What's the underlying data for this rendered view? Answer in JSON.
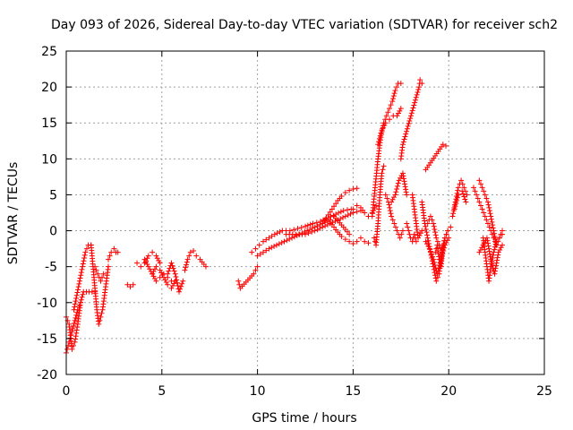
{
  "chart_data": {
    "type": "scatter",
    "title": "Day 093 of 2026, Sidereal Day-to-day VTEC variation (SDTVAR) for receiver sch2",
    "xlabel": "GPS time / hours",
    "ylabel": "SDTVAR / TECUs",
    "xlim": [
      0,
      25
    ],
    "ylim": [
      -20,
      25
    ],
    "xticks": [
      "0",
      "5",
      "10",
      "15",
      "20",
      "25"
    ],
    "yticks": [
      "-20",
      "-15",
      "-10",
      "-5",
      "0",
      "5",
      "10",
      "15",
      "20",
      "25"
    ],
    "grid": true,
    "marker": "+",
    "color": "#ff0000",
    "series": [
      {
        "name": "sch2",
        "segments": [
          {
            "x": [
              0.0,
              0.15,
              0.3,
              0.45,
              0.6,
              0.75,
              0.9,
              1.05,
              1.2,
              1.35,
              1.5
            ],
            "y": [
              -12,
              -13,
              -16.5,
              -15.5,
              -13,
              -10,
              -8.5,
              -8.5,
              -8.5,
              -8.5,
              -8.5
            ]
          },
          {
            "x": [
              0.4,
              0.55,
              0.7,
              0.85,
              1.0,
              1.15,
              1.3
            ],
            "y": [
              -11,
              -9,
              -7,
              -5,
              -3,
              -2,
              -2
            ]
          },
          {
            "x": [
              0.0,
              0.1,
              0.2,
              0.3,
              0.45,
              0.6,
              0.75
            ],
            "y": [
              -17,
              -16,
              -15,
              -14,
              -12.5,
              -11,
              -10
            ]
          },
          {
            "x": [
              1.3,
              1.4,
              1.5,
              1.6,
              1.7,
              1.8,
              1.9,
              2.0,
              2.1,
              2.2
            ],
            "y": [
              -2,
              -5,
              -8,
              -11,
              -13,
              -12,
              -11,
              -9,
              -7,
              -5
            ]
          },
          {
            "x": [
              1.5,
              1.65,
              1.8,
              1.95
            ],
            "y": [
              -5,
              -6,
              -7,
              -6
            ]
          },
          {
            "x": [
              2.2,
              2.35,
              2.5,
              2.6,
              2.7
            ],
            "y": [
              -4,
              -3,
              -2.5,
              -3,
              -3
            ]
          },
          {
            "x": [
              3.2,
              3.35,
              3.5
            ],
            "y": [
              -7.5,
              -7.8,
              -7.5
            ]
          },
          {
            "x": [
              3.7,
              3.9,
              4.1,
              4.3,
              4.5,
              4.7,
              4.9
            ],
            "y": [
              -4.5,
              -5,
              -4.5,
              -3.5,
              -3,
              -3.5,
              -4.5
            ]
          },
          {
            "x": [
              4.1,
              4.3,
              4.5,
              4.7,
              4.9,
              5.1,
              5.3,
              5.5
            ],
            "y": [
              -4,
              -5,
              -6,
              -7,
              -6.5,
              -6,
              -6.5,
              -7
            ]
          },
          {
            "x": [
              4.5,
              4.7,
              4.9,
              5.1,
              5.3,
              5.5,
              5.7
            ],
            "y": [
              -6,
              -5,
              -5.5,
              -6.5,
              -7.5,
              -8,
              -7
            ]
          },
          {
            "x": [
              5.3,
              5.5,
              5.7,
              5.9,
              6.1
            ],
            "y": [
              -6,
              -4.5,
              -6,
              -8.5,
              -7
            ]
          },
          {
            "x": [
              6.2,
              6.35,
              6.5,
              6.65
            ],
            "y": [
              -5.5,
              -4,
              -3,
              -2.8
            ]
          },
          {
            "x": [
              6.8,
              7.0,
              7.3
            ],
            "y": [
              -3.5,
              -4,
              -5
            ]
          },
          {
            "x": [
              9.0,
              9.1,
              9.8,
              9.9,
              10.0
            ],
            "y": [
              -7,
              -8,
              -6,
              -5.5,
              -5
            ]
          },
          {
            "x": [
              9.7,
              9.9,
              10.1,
              10.3,
              10.6,
              10.9,
              11.3,
              11.7,
              12.1,
              12.5,
              12.9,
              13.3,
              13.7,
              14.1,
              14.5,
              14.9
            ],
            "y": [
              -3,
              -2.5,
              -2,
              -1.5,
              -1,
              -0.5,
              0,
              0,
              0.3,
              0.6,
              1,
              1.3,
              1.8,
              2.3,
              2.8,
              3
            ]
          },
          {
            "x": [
              10.0,
              10.3,
              10.6,
              11.0,
              11.4,
              11.8,
              12.2,
              12.6,
              13.0,
              13.4,
              13.8
            ],
            "y": [
              -3.5,
              -3,
              -2.5,
              -2,
              -1.5,
              -1,
              -0.5,
              0,
              0.5,
              1,
              1.5
            ]
          },
          {
            "x": [
              11.5,
              12.0,
              12.5,
              13.0,
              13.4,
              13.8,
              14.2,
              14.6,
              15.0,
              15.4
            ],
            "y": [
              -0.5,
              -0.5,
              -0.5,
              0,
              0.5,
              1,
              1.5,
              2,
              2.5,
              2.8
            ]
          },
          {
            "x": [
              13.4,
              13.6,
              13.8,
              14.0,
              14.2,
              14.4,
              14.6,
              14.8,
              15.0,
              15.2
            ],
            "y": [
              1,
              1.8,
              2.6,
              3.4,
              4.2,
              4.8,
              5.3,
              5.6,
              5.8,
              5.9
            ]
          },
          {
            "x": [
              13.8,
              14.0,
              14.2,
              14.4,
              14.6,
              14.8,
              15.0,
              15.2,
              15.4,
              15.6,
              15.8
            ],
            "y": [
              1.2,
              0.5,
              -0.2,
              -0.8,
              -1.2,
              -1.5,
              -1.8,
              -1.5,
              -1,
              -1.5,
              -1.7
            ]
          },
          {
            "x": [
              14.0,
              14.2,
              14.4,
              14.6,
              14.8
            ],
            "y": [
              2,
              1.4,
              0.8,
              0.2,
              -0.5
            ]
          },
          {
            "x": [
              15.0,
              15.2,
              15.4,
              15.6,
              15.8,
              16.0,
              16.2
            ],
            "y": [
              3,
              3.5,
              3.2,
              2.5,
              2,
              2.5,
              3.5
            ]
          },
          {
            "x": [
              16.0,
              16.15,
              16.3,
              16.45,
              16.6,
              16.75,
              16.9,
              17.05,
              17.2,
              17.35,
              17.5
            ],
            "y": [
              2,
              6,
              10,
              13,
              15,
              16,
              17,
              18,
              19.5,
              20.5,
              20.5
            ]
          },
          {
            "x": [
              16.3,
              16.5,
              16.7,
              16.9,
              17.1,
              17.3,
              17.5
            ],
            "y": [
              12,
              14,
              15,
              15.5,
              16,
              16,
              17
            ]
          },
          {
            "x": [
              16.1,
              16.2,
              16.3,
              16.4,
              16.5,
              16.6
            ],
            "y": [
              -1,
              -2,
              1,
              5,
              8,
              9
            ]
          },
          {
            "x": [
              16.7,
              16.85,
              17.0,
              17.15,
              17.3,
              17.45,
              17.6
            ],
            "y": [
              5,
              4,
              2,
              1,
              0,
              -1,
              0
            ]
          },
          {
            "x": [
              17.0,
              17.2,
              17.4,
              17.6,
              17.8
            ],
            "y": [
              4,
              5,
              7,
              8,
              5
            ]
          },
          {
            "x": [
              17.8,
              17.9,
              18.0,
              18.1,
              18.2,
              18.3
            ],
            "y": [
              1,
              0,
              -1,
              -1.5,
              -0.5,
              -1.5
            ]
          },
          {
            "x": [
              17.5,
              17.6,
              18.45,
              18.5,
              18.6
            ],
            "y": [
              10,
              12,
              20,
              21,
              20.5
            ]
          },
          {
            "x": [
              18.1,
              18.2,
              18.3,
              18.4,
              18.6
            ],
            "y": [
              5,
              3,
              1,
              -1,
              0
            ]
          },
          {
            "x": [
              18.6,
              18.75,
              18.9,
              19.05,
              19.2,
              19.35,
              19.5,
              19.65,
              19.8,
              19.95,
              20.1
            ],
            "y": [
              4,
              1,
              -1,
              -3,
              -5,
              -7,
              -6,
              -3,
              -1,
              0,
              0.5
            ]
          },
          {
            "x": [
              18.9,
              19.05,
              19.2,
              19.35,
              19.5,
              19.65,
              19.8,
              19.95
            ],
            "y": [
              1,
              2,
              1,
              -1,
              -2,
              -3,
              -1,
              0
            ]
          },
          {
            "x": [
              19.3,
              19.4,
              19.5,
              19.6,
              19.7
            ],
            "y": [
              -3,
              -2,
              -4,
              -5,
              -2
            ]
          },
          {
            "x": [
              18.8,
              19.0,
              19.2,
              19.4,
              19.6,
              19.8,
              20.0
            ],
            "y": [
              -1.5,
              -2.5,
              -4,
              -6,
              -4,
              -2,
              -1
            ]
          },
          {
            "x": [
              18.8,
              19.7,
              19.85
            ],
            "y": [
              8.5,
              12,
              11.8
            ]
          },
          {
            "x": [
              20.2,
              20.35,
              20.5,
              20.65,
              20.8,
              20.95
            ],
            "y": [
              2,
              4,
              6,
              7,
              6,
              5
            ]
          },
          {
            "x": [
              20.3,
              20.5,
              20.7,
              20.9
            ],
            "y": [
              3,
              5,
              5.5,
              4
            ]
          },
          {
            "x": [
              21.3,
              21.45,
              21.6,
              21.75,
              21.9,
              22.05,
              22.2,
              22.35,
              22.5,
              22.65,
              22.8
            ],
            "y": [
              6,
              5,
              4,
              3,
              2,
              1,
              0,
              -1,
              -2,
              -1,
              0
            ]
          },
          {
            "x": [
              21.6,
              21.75,
              21.9,
              22.05,
              22.2,
              22.35,
              22.5
            ],
            "y": [
              7,
              6,
              5,
              4,
              2,
              0,
              -2
            ]
          },
          {
            "x": [
              21.6,
              21.8,
              22.0,
              22.2,
              22.4,
              22.6,
              22.8
            ],
            "y": [
              -3,
              -2,
              -1,
              -4,
              -6,
              -3,
              -2
            ]
          },
          {
            "x": [
              21.8,
              21.9,
              22.0,
              22.1,
              22.2,
              22.35,
              22.5,
              22.65,
              22.8
            ],
            "y": [
              -1,
              -3,
              -5,
              -7,
              -5,
              -3,
              -1.5,
              -1,
              -0.5
            ]
          }
        ]
      }
    ]
  }
}
